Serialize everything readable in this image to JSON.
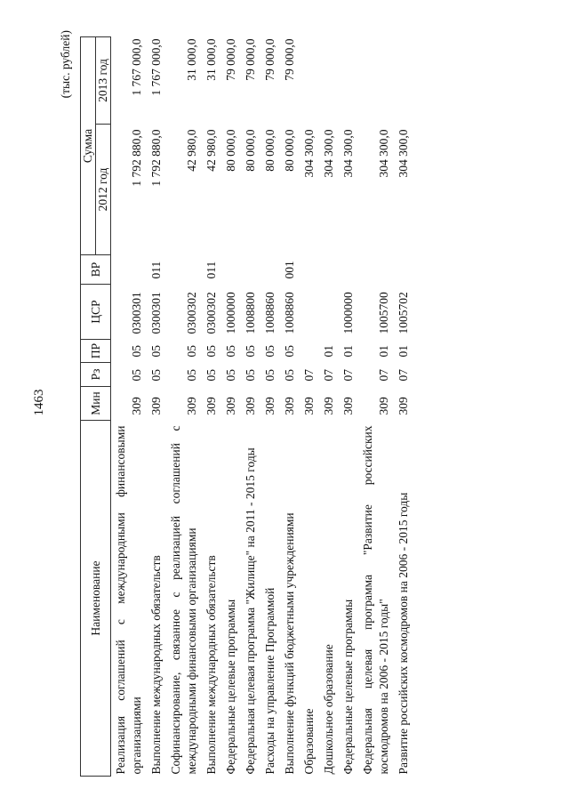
{
  "page_number": "1463",
  "units": "(тыс. рублей)",
  "headers": {
    "name": "Наименование",
    "min": "Мин",
    "rz": "Рз",
    "pr": "ПР",
    "csr": "ЦСР",
    "vr": "ВР",
    "sum": "Сумма",
    "y2012": "2012 год",
    "y2013": "2013 год"
  },
  "rows": [
    {
      "name": "Реализация соглашений с международными финансовыми организациями",
      "min": "309",
      "rz": "05",
      "pr": "05",
      "csr": "0300301",
      "vr": "",
      "y2012": "1 792 880,0",
      "y2013": "1 767 000,0"
    },
    {
      "name": "Выполнение международных обязательств",
      "min": "309",
      "rz": "05",
      "pr": "05",
      "csr": "0300301",
      "vr": "011",
      "y2012": "1 792 880,0",
      "y2013": "1 767 000,0"
    },
    {
      "name": "Софинансирование, связанное с реализацией соглашений с международными финансовыми организациями",
      "min": "309",
      "rz": "05",
      "pr": "05",
      "csr": "0300302",
      "vr": "",
      "y2012": "42 980,0",
      "y2013": "31 000,0"
    },
    {
      "name": "Выполнение международных обязательств",
      "min": "309",
      "rz": "05",
      "pr": "05",
      "csr": "0300302",
      "vr": "011",
      "y2012": "42 980,0",
      "y2013": "31 000,0"
    },
    {
      "name": "Федеральные целевые программы",
      "min": "309",
      "rz": "05",
      "pr": "05",
      "csr": "1000000",
      "vr": "",
      "y2012": "80 000,0",
      "y2013": "79 000,0"
    },
    {
      "name": "Федеральная целевая программа \"Жилище\" на 2011 - 2015 годы",
      "min": "309",
      "rz": "05",
      "pr": "05",
      "csr": "1008800",
      "vr": "",
      "y2012": "80 000,0",
      "y2013": "79 000,0"
    },
    {
      "name": "Расходы на управление Программой",
      "min": "309",
      "rz": "05",
      "pr": "05",
      "csr": "1008860",
      "vr": "",
      "y2012": "80 000,0",
      "y2013": "79 000,0"
    },
    {
      "name": "Выполнение функций бюджетными учреждениями",
      "min": "309",
      "rz": "05",
      "pr": "05",
      "csr": "1008860",
      "vr": "001",
      "y2012": "80 000,0",
      "y2013": "79 000,0"
    },
    {
      "name": "Образование",
      "min": "309",
      "rz": "07",
      "pr": "",
      "csr": "",
      "vr": "",
      "y2012": "304 300,0",
      "y2013": ""
    },
    {
      "name": "Дошкольное образование",
      "min": "309",
      "rz": "07",
      "pr": "01",
      "csr": "",
      "vr": "",
      "y2012": "304 300,0",
      "y2013": ""
    },
    {
      "name": "Федеральные целевые программы",
      "min": "309",
      "rz": "07",
      "pr": "01",
      "csr": "1000000",
      "vr": "",
      "y2012": "304 300,0",
      "y2013": ""
    },
    {
      "name": "Федеральная целевая программа \"Развитие российских космодромов на 2006 - 2015 годы\"",
      "min": "309",
      "rz": "07",
      "pr": "01",
      "csr": "1005700",
      "vr": "",
      "y2012": "304 300,0",
      "y2013": ""
    },
    {
      "name": "Развитие российских космодромов на 2006 - 2015 годы",
      "min": "309",
      "rz": "07",
      "pr": "01",
      "csr": "1005702",
      "vr": "",
      "y2012": "304 300,0",
      "y2013": ""
    }
  ]
}
